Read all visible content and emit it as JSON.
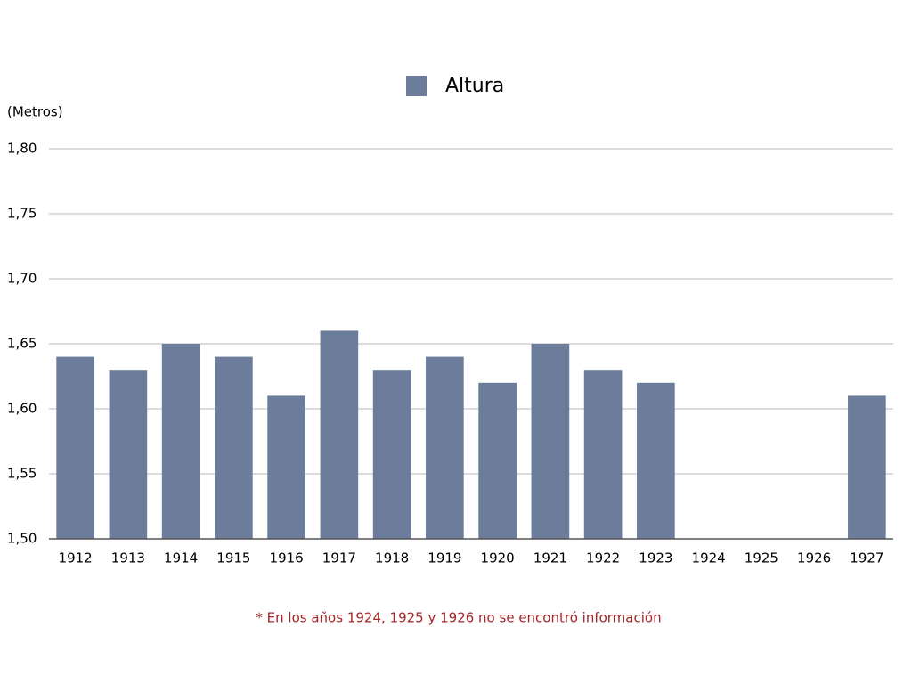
{
  "chart_data": {
    "type": "bar",
    "legend_label": "Altura",
    "y_label": "(Metros)",
    "annotation": "* En los años 1924, 1925 y 1926 no se encontró información",
    "categories": [
      "1912",
      "1913",
      "1914",
      "1915",
      "1916",
      "1917",
      "1918",
      "1919",
      "1920",
      "1921",
      "1922",
      "1923",
      "1924",
      "1925",
      "1926",
      "1927"
    ],
    "values": [
      1.64,
      1.63,
      1.65,
      1.64,
      1.61,
      1.66,
      1.63,
      1.64,
      1.62,
      1.65,
      1.63,
      1.62,
      null,
      null,
      null,
      1.61
    ],
    "color": "#6b7d9a",
    "annotation_color": "#a3262a",
    "ylim": [
      1.5,
      1.8
    ],
    "yticks": [
      {
        "value": 1.5,
        "label": "1,50"
      },
      {
        "value": 1.55,
        "label": "1,55"
      },
      {
        "value": 1.6,
        "label": "1,60"
      },
      {
        "value": 1.65,
        "label": "1,65"
      },
      {
        "value": 1.7,
        "label": "1,70"
      },
      {
        "value": 1.75,
        "label": "1,75"
      },
      {
        "value": 1.8,
        "label": "1,80"
      }
    ],
    "grid": true
  }
}
